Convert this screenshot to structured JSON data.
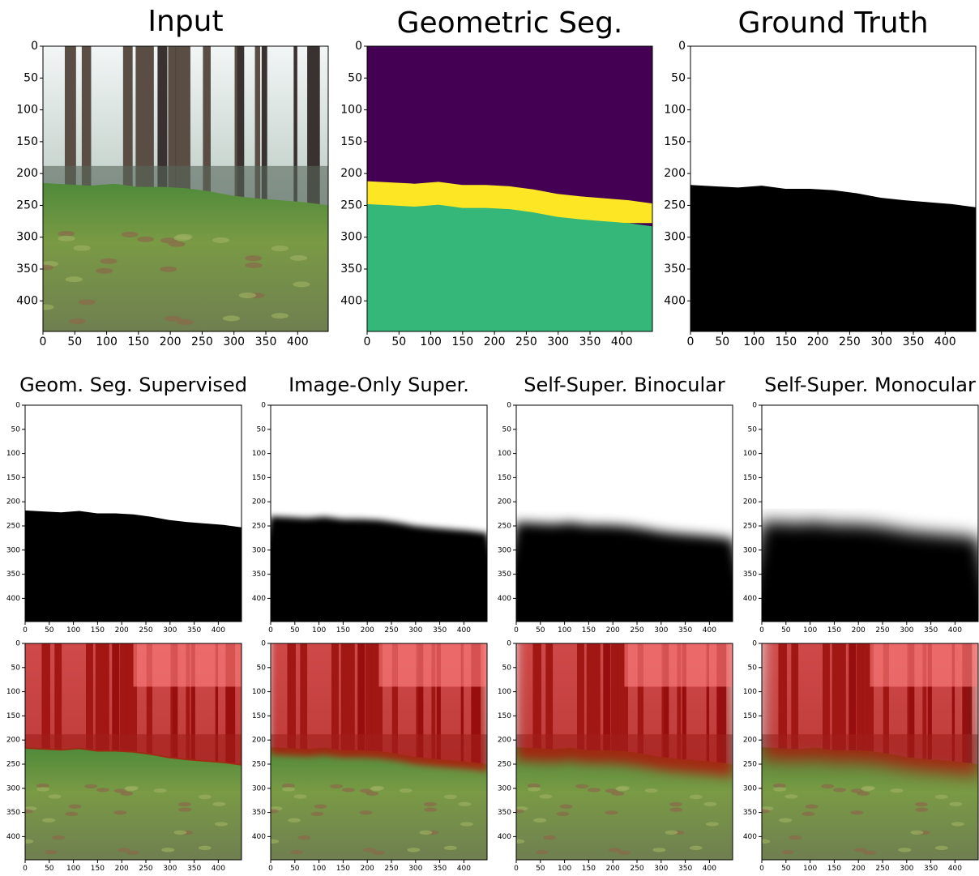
{
  "axes": {
    "xlim": [
      0,
      448
    ],
    "ylim": [
      0,
      448
    ],
    "xticks": [
      0,
      50,
      100,
      150,
      200,
      250,
      300,
      350,
      400
    ],
    "yticks": [
      0,
      50,
      100,
      150,
      200,
      250,
      300,
      350,
      400
    ]
  },
  "panels": [
    {
      "title": "Input"
    },
    {
      "title": "Geometric Seg."
    },
    {
      "title": "Ground Truth"
    },
    {
      "title": "Geom. Seg. Supervised"
    },
    {
      "title": "Image-Only Super."
    },
    {
      "title": "Self-Super. Binocular"
    },
    {
      "title": "Self-Super. Monocular"
    },
    {},
    {},
    {},
    {}
  ]
}
